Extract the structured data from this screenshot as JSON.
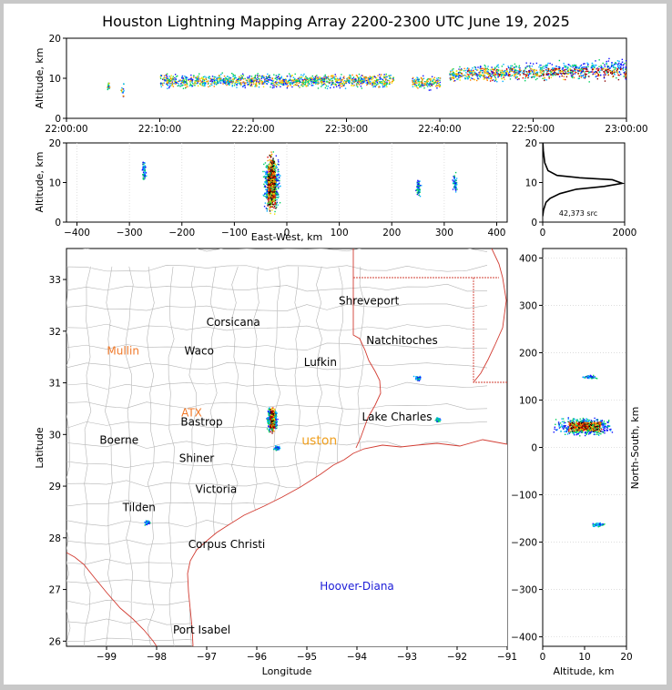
{
  "title": "Houston Lightning Mapping Array 2200-2300 UTC June 19, 2025",
  "colors": {
    "land_border": "#d23c32",
    "county": "#b4b4b4",
    "label_dark": "#000000",
    "label_orange": "#f07828",
    "label_blue": "#1c1cd8",
    "label_gold": "#f0a020",
    "gridline": "#d8d8d8"
  },
  "chart_data": [
    {
      "id": "time_height",
      "type": "scatter",
      "ylabel": "Altitude, km",
      "ylim": [
        0,
        20
      ],
      "yticks": [
        "0",
        "10",
        "20"
      ],
      "xticks": [
        "22:00:00",
        "22:10:00",
        "22:20:00",
        "22:30:00",
        "22:40:00",
        "22:50:00",
        "23:00:00"
      ],
      "x_range_minutes": [
        0,
        60
      ],
      "source_clusters_minutes": [
        {
          "start": 4.3,
          "end": 4.6,
          "alt": 8
        },
        {
          "start": 5.8,
          "end": 6.1,
          "alt": 7
        },
        {
          "start": 10.0,
          "end": 35.0,
          "alt": 9.5
        },
        {
          "start": 37.0,
          "end": 40.0,
          "alt": 9
        },
        {
          "start": 41.0,
          "end": 60.0,
          "alt": 11
        }
      ]
    },
    {
      "id": "east_west_altitude",
      "type": "scatter",
      "xlabel": "East-West, km",
      "ylabel": "Altitude, km",
      "xlim": [
        -420,
        420
      ],
      "ylim": [
        0,
        20
      ],
      "xticks": [
        "−400",
        "−300",
        "−200",
        "−100",
        "0",
        "100",
        "200",
        "300",
        "400"
      ],
      "yticks": [
        "0",
        "10",
        "20"
      ],
      "clusters": [
        {
          "x": -273,
          "alt": 13
        },
        {
          "x": -30,
          "alt": 10
        },
        {
          "x": 250,
          "alt": 9
        },
        {
          "x": 320,
          "alt": 10
        }
      ]
    },
    {
      "id": "altitude_histogram",
      "type": "line",
      "annotation": "42,373 src",
      "xlim": [
        0,
        2000
      ],
      "ylim": [
        0,
        20
      ],
      "xticks": [
        "0",
        "2000"
      ],
      "yticks": [
        "0",
        "10",
        "20"
      ],
      "profile": [
        [
          0,
          1.5
        ],
        [
          20,
          3
        ],
        [
          80,
          5
        ],
        [
          180,
          6
        ],
        [
          420,
          7.2
        ],
        [
          820,
          8.3
        ],
        [
          1500,
          9
        ],
        [
          1940,
          9.8
        ],
        [
          1700,
          10.7
        ],
        [
          900,
          11.2
        ],
        [
          350,
          11.8
        ],
        [
          130,
          13
        ],
        [
          50,
          15
        ],
        [
          15,
          18
        ],
        [
          5,
          20
        ]
      ]
    },
    {
      "id": "plan_view",
      "type": "scatter",
      "xlabel": "Longitude",
      "ylabel": "Latitude",
      "xlim": [
        -99.8,
        -91
      ],
      "ylim": [
        25.9,
        33.6
      ],
      "xticks": [
        "−99",
        "−98",
        "−97",
        "−96",
        "−95",
        "−94",
        "−93",
        "−92",
        "−91"
      ],
      "yticks": [
        "26",
        "27",
        "28",
        "29",
        "30",
        "31",
        "32",
        "33"
      ],
      "clusters": [
        {
          "lon": -95.7,
          "lat": 30.3
        },
        {
          "lon": -95.6,
          "lat": 29.75
        },
        {
          "lon": -98.2,
          "lat": 28.3
        },
        {
          "lon": -92.8,
          "lat": 31.1
        },
        {
          "lon": -92.4,
          "lat": 30.3
        }
      ]
    },
    {
      "id": "altitude_north_south",
      "type": "scatter",
      "xlabel": "Altitude, km",
      "ylabel": "North-South, km",
      "xlim": [
        0,
        20
      ],
      "ylim": [
        -420,
        420
      ],
      "xticks": [
        "0",
        "10",
        "20"
      ],
      "yticks": [
        "−400",
        "−300",
        "−200",
        "−100",
        "0",
        "100",
        "200",
        "300",
        "400"
      ],
      "clusters": [
        {
          "alt": 10,
          "y": 45
        },
        {
          "alt": 11,
          "y": 150
        },
        {
          "alt": 13,
          "y": -162
        }
      ]
    }
  ],
  "map_labels": [
    {
      "text": "Shreveport",
      "lon": -93.76,
      "lat": 32.52,
      "color": "dark"
    },
    {
      "text": "Corsicana",
      "lon": -96.47,
      "lat": 32.1,
      "color": "dark"
    },
    {
      "text": "Mullin",
      "lon": -98.67,
      "lat": 31.55,
      "color": "orange"
    },
    {
      "text": "Waco",
      "lon": -97.15,
      "lat": 31.55,
      "color": "dark"
    },
    {
      "text": "Natchitoches",
      "lon": -93.1,
      "lat": 31.75,
      "color": "dark"
    },
    {
      "text": "Lufkin",
      "lon": -94.73,
      "lat": 31.33,
      "color": "dark"
    },
    {
      "text": "ATX",
      "lon": -97.3,
      "lat": 30.35,
      "color": "orange"
    },
    {
      "text": "Bastrop",
      "lon": -97.1,
      "lat": 30.17,
      "color": "dark"
    },
    {
      "text": "Lake Charles",
      "lon": -93.2,
      "lat": 30.27,
      "color": "dark"
    },
    {
      "text": "Boerne",
      "lon": -98.75,
      "lat": 29.82,
      "color": "dark"
    },
    {
      "text": "Shiner",
      "lon": -97.2,
      "lat": 29.47,
      "color": "dark"
    },
    {
      "text": "Victoria",
      "lon": -96.81,
      "lat": 28.87,
      "color": "dark"
    },
    {
      "text": "Tilden",
      "lon": -98.35,
      "lat": 28.52,
      "color": "dark"
    },
    {
      "text": "Corpus Christi",
      "lon": -96.6,
      "lat": 27.8,
      "color": "dark"
    },
    {
      "text": "Hoover-Diana",
      "lon": -94,
      "lat": 26.99,
      "color": "blue"
    },
    {
      "text": "Port Isabel",
      "lon": -97.1,
      "lat": 26.15,
      "color": "dark"
    },
    {
      "text": "uston",
      "lon": -94.75,
      "lat": 29.8,
      "color": "gold"
    }
  ]
}
